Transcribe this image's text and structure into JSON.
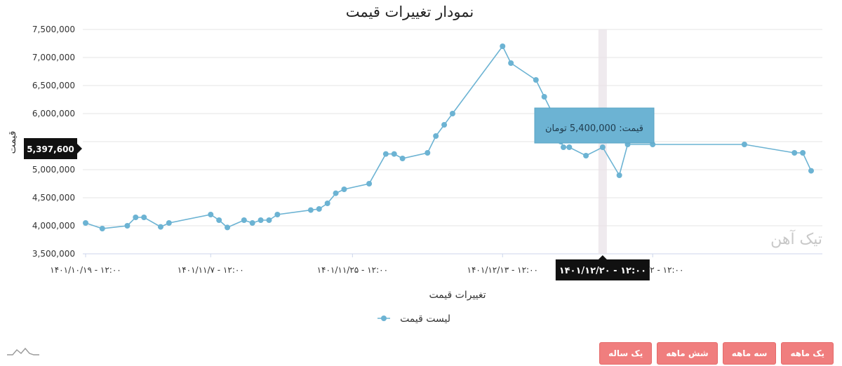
{
  "chart_data": {
    "type": "line",
    "title": "نمودار تغییرات قیمت",
    "xlabel": "تغییرات قیمت",
    "ylabel": "قیمت",
    "ylim": [
      3500000,
      7500000
    ],
    "yticks": [
      "7,500,000",
      "7,000,000",
      "6,500,000",
      "6,000,000",
      "5,500,000",
      "5,000,000",
      "4,500,000",
      "4,000,000",
      "3,500,000"
    ],
    "ytick_values": [
      7500000,
      7000000,
      6500000,
      6000000,
      5500000,
      5000000,
      4500000,
      4000000,
      3500000
    ],
    "xticks": [
      {
        "label": "۱۴۰۱/۱۰/۱۹ - ۱۲:۰۰",
        "index": 0
      },
      {
        "label": "۱۴۰۱/۱۱/۷ - ۱۲:۰۰",
        "index": 15
      },
      {
        "label": "۱۴۰۱/۱۱/۲۵ - ۱۲:۰۰",
        "index": 32
      },
      {
        "label": "۱۴۰۱/۱۲/۱۳ - ۱۲:۰۰",
        "index": 50
      },
      {
        "label": "۱۴۰۲/۱/۲ - ۱۲:۰۰",
        "index": 68
      }
    ],
    "x_count": 87,
    "grid": true,
    "legend_position": "bottom-center",
    "series": [
      {
        "name": "لیست قیمت",
        "color": "#6cb3d3",
        "points": [
          [
            0,
            4050000
          ],
          [
            2,
            3950000
          ],
          [
            5,
            4000000
          ],
          [
            6,
            4150000
          ],
          [
            7,
            4150000
          ],
          [
            9,
            3980000
          ],
          [
            10,
            4050000
          ],
          [
            15,
            4200000
          ],
          [
            16,
            4100000
          ],
          [
            17,
            3970000
          ],
          [
            19,
            4100000
          ],
          [
            20,
            4050000
          ],
          [
            21,
            4100000
          ],
          [
            22,
            4100000
          ],
          [
            23,
            4200000
          ],
          [
            27,
            4280000
          ],
          [
            28,
            4300000
          ],
          [
            29,
            4400000
          ],
          [
            30,
            4580000
          ],
          [
            31,
            4650000
          ],
          [
            34,
            4750000
          ],
          [
            36,
            5280000
          ],
          [
            37,
            5280000
          ],
          [
            38,
            5200000
          ],
          [
            41,
            5300000
          ],
          [
            42,
            5600000
          ],
          [
            43,
            5800000
          ],
          [
            44,
            6000000
          ],
          [
            50,
            7200000
          ],
          [
            51,
            6900000
          ],
          [
            54,
            6600000
          ],
          [
            55,
            6300000
          ],
          [
            56,
            6000000
          ],
          [
            57,
            5500000
          ],
          [
            57.3,
            5400000
          ],
          [
            58,
            5400000
          ],
          [
            60,
            5250000
          ],
          [
            62,
            5400000
          ],
          [
            64,
            4900000
          ],
          [
            65,
            5450000
          ],
          [
            68,
            5450000
          ],
          [
            79,
            5450000
          ],
          [
            85,
            5300000
          ],
          [
            86,
            5300000
          ],
          [
            87,
            4980000
          ]
        ]
      }
    ],
    "hover": {
      "index": 62,
      "x_label": "۱۴۰۱/۱۲/۲۰ - ۱۲:۰۰",
      "y_readout": "5,397,600",
      "tooltip": "قیمت: 5,400,000 تومان"
    }
  },
  "watermark": "تیک آهن",
  "range_buttons": [
    {
      "label": "یک ماهه"
    },
    {
      "label": "سه ماهه"
    },
    {
      "label": "شش ماهه"
    },
    {
      "label": "یک ساله"
    }
  ]
}
